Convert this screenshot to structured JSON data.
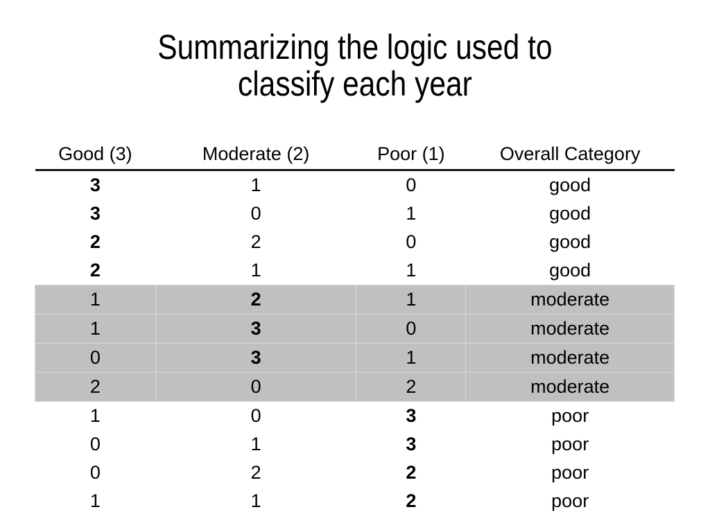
{
  "slide": {
    "title": {
      "line1": "Summarizing the logic used to",
      "line2": "classify each year"
    }
  },
  "table": {
    "columns": [
      "Good (3)",
      "Moderate (2)",
      "Poor (1)",
      "Overall Category"
    ],
    "rows": [
      {
        "cells": [
          "3",
          "1",
          "0",
          "good"
        ],
        "bold_col": 0,
        "highlight": false
      },
      {
        "cells": [
          "3",
          "0",
          "1",
          "good"
        ],
        "bold_col": 0,
        "highlight": false
      },
      {
        "cells": [
          "2",
          "2",
          "0",
          "good"
        ],
        "bold_col": 0,
        "highlight": false
      },
      {
        "cells": [
          "2",
          "1",
          "1",
          "good"
        ],
        "bold_col": 0,
        "highlight": false
      },
      {
        "cells": [
          "1",
          "2",
          "1",
          "moderate"
        ],
        "bold_col": 1,
        "highlight": true
      },
      {
        "cells": [
          "1",
          "3",
          "0",
          "moderate"
        ],
        "bold_col": 1,
        "highlight": true
      },
      {
        "cells": [
          "0",
          "3",
          "1",
          "moderate"
        ],
        "bold_col": 1,
        "highlight": true
      },
      {
        "cells": [
          "2",
          "0",
          "2",
          "moderate"
        ],
        "bold_col": null,
        "highlight": true
      },
      {
        "cells": [
          "1",
          "0",
          "3",
          "poor"
        ],
        "bold_col": 2,
        "highlight": false
      },
      {
        "cells": [
          "0",
          "1",
          "3",
          "poor"
        ],
        "bold_col": 2,
        "highlight": false
      },
      {
        "cells": [
          "0",
          "2",
          "2",
          "poor"
        ],
        "bold_col": 2,
        "highlight": false
      },
      {
        "cells": [
          "1",
          "1",
          "2",
          "poor"
        ],
        "bold_col": 2,
        "highlight": false
      }
    ]
  },
  "colors": {
    "highlight_band": "#c0c0c0",
    "cell_divider": "#d9d9d9",
    "header_rule": "#141414",
    "text": "#000000",
    "background": "#ffffff"
  }
}
